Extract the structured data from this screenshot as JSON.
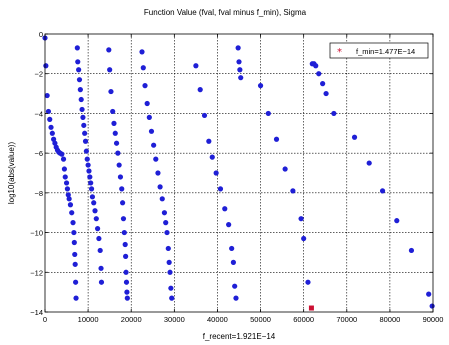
{
  "chart_data": {
    "type": "scatter",
    "title": "Function Value (fval, fval minus f_min), Sigma",
    "xlabel": "f_recent=1.921E−14",
    "ylabel": "log10(abs(value))",
    "xlim": [
      0,
      90000
    ],
    "ylim": [
      -14,
      0
    ],
    "grid": true,
    "x_ticks": [
      0,
      10000,
      20000,
      30000,
      40000,
      50000,
      60000,
      70000,
      80000,
      90000
    ],
    "x_tick_labels": [
      "0",
      "10000",
      "20000",
      "30000",
      "40000",
      "50000",
      "60000",
      "70000",
      "80000",
      "90000"
    ],
    "y_ticks": [
      0,
      -2,
      -4,
      -6,
      -8,
      -10,
      -12,
      -14
    ],
    "y_tick_labels": [
      "0",
      "−2",
      "−4",
      "−6",
      "−8",
      "−10",
      "−12",
      "−14"
    ],
    "legend": {
      "placement": "top-right",
      "label": "f_min=1.477E−14",
      "marker": "*",
      "color": "#cc1133"
    },
    "series": [
      {
        "color": "#1f1fd6",
        "marker": "circle",
        "points": [
          [
            0,
            -0.2
          ],
          [
            200,
            -1.6
          ],
          [
            500,
            -3.1
          ],
          [
            800,
            -3.9
          ],
          [
            1100,
            -4.3
          ],
          [
            1400,
            -4.7
          ],
          [
            1700,
            -5.0
          ],
          [
            2000,
            -5.3
          ],
          [
            2300,
            -5.5
          ],
          [
            2600,
            -5.7
          ],
          [
            2900,
            -5.85
          ],
          [
            3200,
            -5.95
          ],
          [
            3500,
            -6.0
          ],
          [
            3900,
            -6.05
          ],
          [
            4300,
            -6.3
          ],
          [
            4500,
            -6.8
          ],
          [
            4700,
            -7.2
          ],
          [
            5000,
            -7.5
          ],
          [
            5200,
            -7.8
          ],
          [
            5400,
            -8.1
          ],
          [
            5600,
            -8.3
          ],
          [
            5900,
            -8.6
          ],
          [
            6200,
            -9.0
          ],
          [
            6500,
            -9.5
          ],
          [
            6700,
            -10.0
          ],
          [
            6800,
            -10.5
          ],
          [
            6900,
            -11.1
          ],
          [
            7000,
            -11.6
          ],
          [
            7100,
            -12.5
          ],
          [
            7200,
            -13.3
          ],
          [
            7500,
            -0.7
          ],
          [
            7600,
            -1.4
          ],
          [
            7800,
            -1.8
          ],
          [
            8000,
            -2.3
          ],
          [
            8200,
            -2.8
          ],
          [
            8400,
            -3.3
          ],
          [
            8600,
            -3.8
          ],
          [
            8800,
            -4.2
          ],
          [
            9000,
            -4.6
          ],
          [
            9200,
            -5.0
          ],
          [
            9400,
            -5.4
          ],
          [
            9600,
            -5.9
          ],
          [
            9800,
            -6.3
          ],
          [
            10000,
            -6.6
          ],
          [
            10200,
            -6.9
          ],
          [
            10400,
            -7.2
          ],
          [
            10600,
            -7.5
          ],
          [
            10800,
            -7.8
          ],
          [
            11000,
            -8.2
          ],
          [
            11300,
            -8.5
          ],
          [
            11600,
            -8.9
          ],
          [
            11900,
            -9.3
          ],
          [
            12200,
            -9.8
          ],
          [
            12500,
            -10.3
          ],
          [
            12800,
            -10.9
          ],
          [
            13000,
            -11.8
          ],
          [
            13100,
            -12.5
          ],
          [
            14800,
            -0.8
          ],
          [
            15000,
            -1.8
          ],
          [
            15300,
            -2.9
          ],
          [
            15700,
            -3.9
          ],
          [
            16000,
            -4.5
          ],
          [
            16300,
            -5.0
          ],
          [
            16600,
            -5.5
          ],
          [
            16900,
            -6.0
          ],
          [
            17200,
            -6.6
          ],
          [
            17500,
            -7.2
          ],
          [
            17800,
            -7.8
          ],
          [
            18000,
            -8.5
          ],
          [
            18200,
            -9.3
          ],
          [
            18400,
            -10.0
          ],
          [
            18600,
            -10.6
          ],
          [
            18700,
            -11.2
          ],
          [
            18800,
            -12.0
          ],
          [
            18900,
            -12.5
          ],
          [
            19000,
            -13.0
          ],
          [
            19100,
            -13.3
          ],
          [
            22500,
            -0.9
          ],
          [
            22800,
            -1.7
          ],
          [
            23200,
            -2.6
          ],
          [
            23700,
            -3.5
          ],
          [
            24200,
            -4.2
          ],
          [
            24700,
            -4.9
          ],
          [
            25200,
            -5.6
          ],
          [
            25700,
            -6.3
          ],
          [
            26200,
            -7.0
          ],
          [
            26700,
            -7.7
          ],
          [
            27200,
            -8.3
          ],
          [
            27700,
            -9.0
          ],
          [
            28000,
            -9.5
          ],
          [
            28300,
            -10.0
          ],
          [
            28600,
            -10.8
          ],
          [
            28800,
            -11.5
          ],
          [
            29000,
            -12.0
          ],
          [
            29200,
            -12.8
          ],
          [
            29400,
            -13.3
          ],
          [
            35000,
            -1.6
          ],
          [
            36000,
            -2.8
          ],
          [
            37000,
            -4.1
          ],
          [
            38000,
            -5.4
          ],
          [
            38800,
            -6.2
          ],
          [
            39700,
            -7.0
          ],
          [
            40700,
            -7.8
          ],
          [
            41700,
            -8.8
          ],
          [
            42600,
            -9.6
          ],
          [
            43300,
            -10.8
          ],
          [
            43700,
            -11.5
          ],
          [
            44000,
            -12.7
          ],
          [
            44300,
            -13.3
          ],
          [
            44800,
            -0.7
          ],
          [
            45000,
            -1.4
          ],
          [
            45200,
            -1.8
          ],
          [
            45400,
            -2.2
          ],
          [
            50000,
            -2.6
          ],
          [
            51800,
            -4.0
          ],
          [
            53700,
            -5.3
          ],
          [
            55700,
            -6.8
          ],
          [
            57500,
            -7.9
          ],
          [
            59400,
            -9.3
          ],
          [
            60000,
            -10.3
          ],
          [
            61000,
            -12.5
          ],
          [
            62000,
            -1.5
          ],
          [
            62400,
            -1.5
          ],
          [
            62800,
            -1.6
          ],
          [
            63500,
            -2.0
          ],
          [
            64400,
            -2.5
          ],
          [
            65200,
            -3.0
          ],
          [
            67000,
            -4.0
          ],
          [
            71800,
            -5.2
          ],
          [
            75200,
            -6.5
          ],
          [
            78300,
            -7.9
          ],
          [
            81600,
            -9.4
          ],
          [
            85000,
            -10.9
          ],
          [
            89000,
            -13.1
          ],
          [
            89800,
            -13.7
          ]
        ]
      },
      {
        "name": "f_min=1.477E−14",
        "color": "#cc1133",
        "marker": "square",
        "points": [
          [
            61800,
            -13.8
          ]
        ]
      }
    ]
  }
}
